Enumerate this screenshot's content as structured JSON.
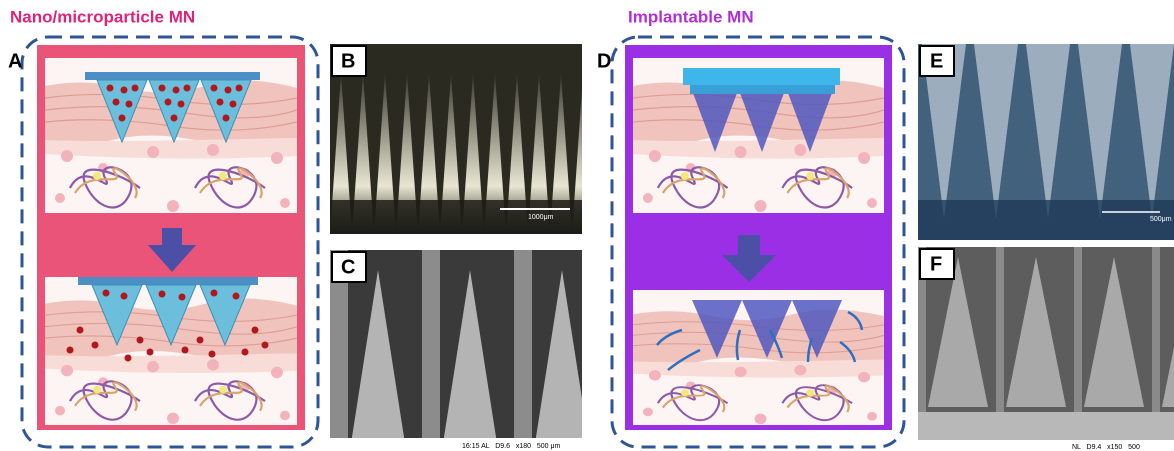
{
  "titles": {
    "left": "Nano/microparticle MN",
    "right": "Implantable MN"
  },
  "panels": [
    {
      "label": "A"
    },
    {
      "label": "B",
      "scale": "1000μm"
    },
    {
      "label": "C",
      "footer": "16:15 AL   D9.6   x180   500 μm"
    },
    {
      "label": "D"
    },
    {
      "label": "E",
      "scale": "500μm"
    },
    {
      "label": "F",
      "footer": "NL   D9.4   x150   500"
    }
  ]
}
